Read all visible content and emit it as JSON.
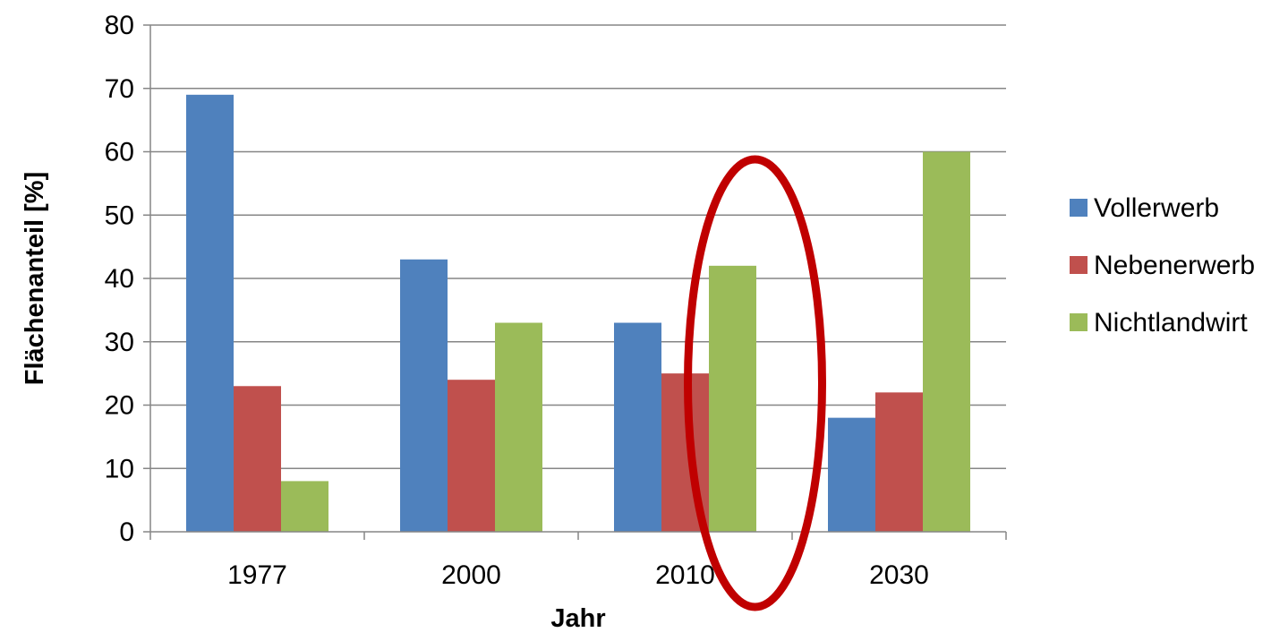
{
  "chart_data": {
    "type": "bar",
    "categories": [
      "1977",
      "2000",
      "2010",
      "2030"
    ],
    "series": [
      {
        "name": "Vollerwerb",
        "color": "#4F81BD",
        "values": [
          69,
          43,
          33,
          18
        ]
      },
      {
        "name": "Nebenerwerb",
        "color": "#C0504D",
        "values": [
          23,
          24,
          25,
          22
        ]
      },
      {
        "name": "Nichtlandwirt",
        "color": "#9BBB59",
        "values": [
          8,
          33,
          42,
          60
        ]
      }
    ],
    "title": "",
    "xlabel": "Jahr",
    "ylabel": "Flächenanteil [%]",
    "ylim": [
      0,
      80
    ],
    "yticks": [
      0,
      10,
      20,
      30,
      40,
      50,
      60,
      70,
      80
    ],
    "grid": true,
    "legend_position": "right",
    "annotation": {
      "type": "ellipse",
      "target_category": "2010",
      "color": "#C00000"
    }
  }
}
